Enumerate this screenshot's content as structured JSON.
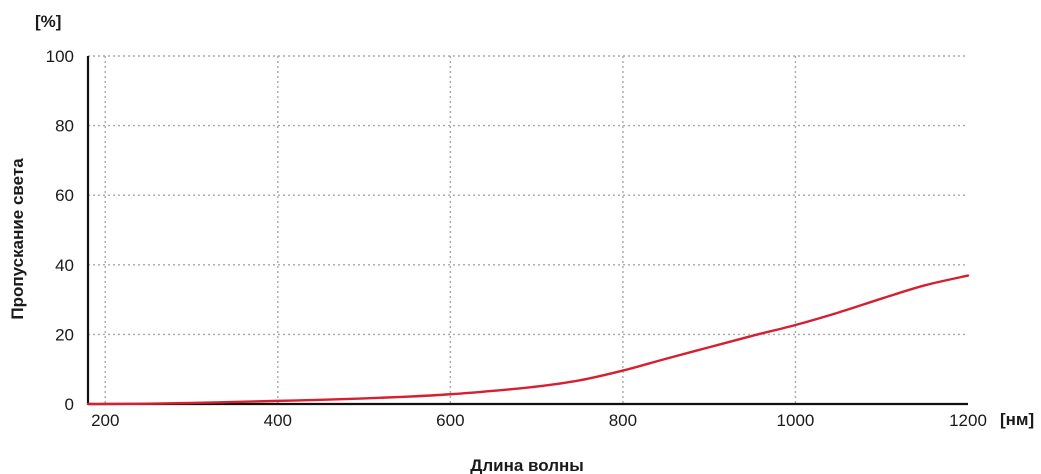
{
  "chart_data": {
    "type": "line",
    "xlabel": "Длина волны",
    "ylabel": "Пропускание света",
    "x_unit": "[нм]",
    "y_unit": "[%]",
    "xlim": [
      180,
      1200
    ],
    "ylim": [
      0,
      100
    ],
    "x_ticks": [
      200,
      400,
      600,
      800,
      1000,
      1200
    ],
    "y_ticks": [
      0,
      20,
      40,
      60,
      80,
      100
    ],
    "grid": true,
    "line_color": "#d42030",
    "series": [
      {
        "x": [
          180,
          200,
          250,
          300,
          350,
          400,
          450,
          500,
          550,
          600,
          650,
          700,
          750,
          800,
          850,
          900,
          950,
          1000,
          1050,
          1100,
          1150,
          1200
        ],
        "y": [
          0,
          0,
          0.1,
          0.3,
          0.6,
          0.9,
          1.2,
          1.6,
          2.1,
          2.8,
          3.8,
          5.0,
          6.8,
          9.6,
          13.0,
          16.3,
          19.6,
          22.7,
          26.3,
          30.3,
          34.1,
          36.9
        ]
      }
    ]
  }
}
